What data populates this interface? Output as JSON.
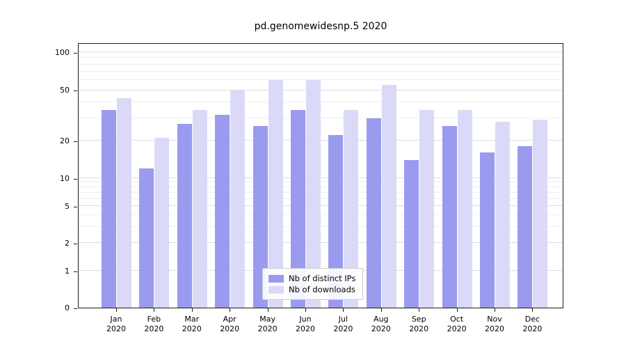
{
  "chart_data": {
    "type": "bar",
    "title": "pd.genomewidesnp.5 2020",
    "categories": [
      "Jan",
      "Feb",
      "Mar",
      "Apr",
      "May",
      "Jun",
      "Jul",
      "Aug",
      "Sep",
      "Oct",
      "Nov",
      "Dec"
    ],
    "year_label": "2020",
    "series": [
      {
        "name": "Nb of distinct IPs",
        "color": "#9a9aef",
        "values": [
          35,
          12,
          27,
          32,
          26,
          35,
          22,
          30,
          14,
          26,
          16,
          18
        ]
      },
      {
        "name": "Nb of downloads",
        "color": "#dadaf8",
        "values": [
          43,
          21,
          35,
          50,
          60,
          60,
          35,
          55,
          35,
          35,
          28,
          29
        ]
      }
    ],
    "yticks": [
      0,
      1,
      2,
      5,
      10,
      20,
      50,
      100
    ],
    "yticks_minor": [
      3,
      4,
      6,
      7,
      8,
      9,
      30,
      40,
      60,
      70,
      80,
      90
    ],
    "scale": "symlog",
    "ylim": [
      0,
      120
    ],
    "xlabel": "",
    "ylabel": "",
    "grid": true,
    "legend_position": "lower center",
    "colors": {
      "spine": "#1a1a1a",
      "grid_major": "#dcdcdc",
      "grid_minor": "#efefef",
      "background": "#ffffff"
    }
  }
}
